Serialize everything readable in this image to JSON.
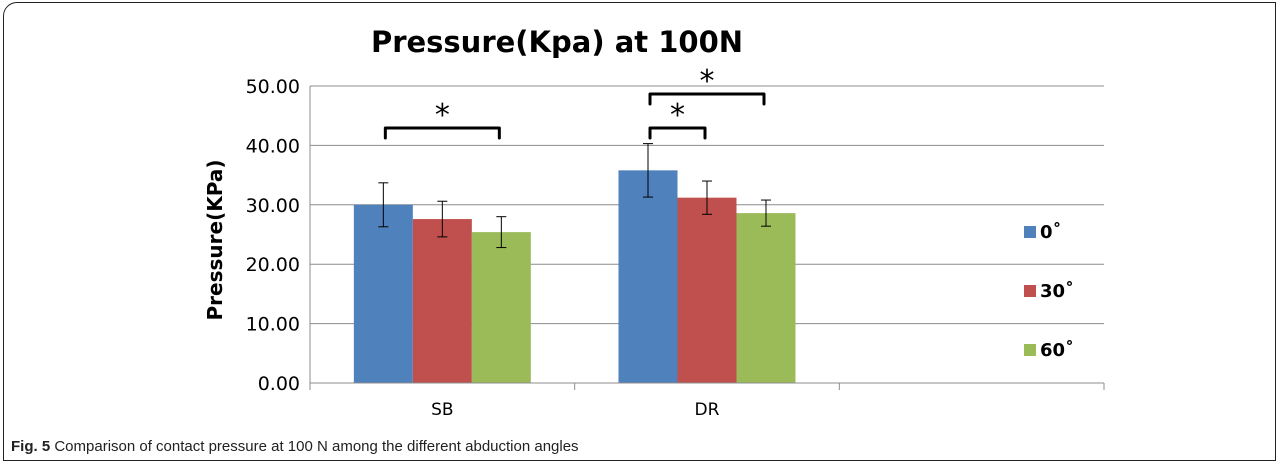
{
  "caption": {
    "label": "Fig. 5",
    "text": "Comparison of contact pressure at 100 N among the different abduction angles"
  },
  "chart_data": {
    "type": "bar",
    "title": "Pressure(Kpa) at 100N",
    "xlabel": "",
    "ylabel": "Pressure(KPa)",
    "ylim": [
      0,
      50
    ],
    "yticks": [
      "0.00",
      "10.00",
      "20.00",
      "30.00",
      "40.00",
      "50.00"
    ],
    "categories": [
      "SB",
      "DR",
      ""
    ],
    "grid": true,
    "legend_position": "right",
    "series": [
      {
        "name": "0˚",
        "color": "#4f81bd",
        "values": [
          30.0,
          35.8,
          null
        ],
        "error": [
          3.7,
          4.5,
          null
        ]
      },
      {
        "name": "30˚",
        "color": "#c0504d",
        "values": [
          27.6,
          31.2,
          null
        ],
        "error": [
          3.0,
          2.8,
          null
        ]
      },
      {
        "name": "60˚",
        "color": "#9bbb59",
        "values": [
          25.4,
          28.6,
          null
        ],
        "error": [
          2.6,
          2.2,
          null
        ]
      }
    ],
    "annotations": [
      {
        "category": 0,
        "from_series": 0,
        "to_series": 2,
        "label": "*"
      },
      {
        "category": 1,
        "from_series": 0,
        "to_series": 1,
        "label": "*"
      },
      {
        "category": 1,
        "from_series": 0,
        "to_series": 2,
        "label": "*"
      }
    ]
  }
}
